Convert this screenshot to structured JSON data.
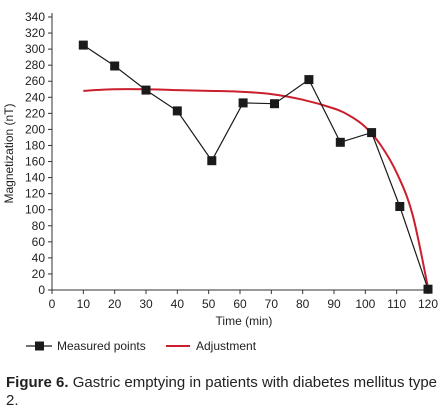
{
  "chart_data": {
    "type": "line",
    "xlabel": "Time (min)",
    "ylabel": "Magnetization (nT)",
    "xlim": [
      0,
      120
    ],
    "ylim": [
      0,
      340
    ],
    "xticks": [
      0,
      10,
      20,
      30,
      40,
      50,
      60,
      70,
      80,
      90,
      100,
      110,
      120
    ],
    "yticks": [
      0,
      20,
      40,
      60,
      80,
      100,
      120,
      140,
      160,
      180,
      200,
      220,
      240,
      260,
      280,
      300,
      320,
      340
    ],
    "grid": false,
    "legend_position": "bottom",
    "series": [
      {
        "name": "Measured points",
        "style": "line-with-square-markers",
        "color": "#1a1a1a",
        "x": [
          10,
          20,
          30,
          40,
          51,
          61,
          71,
          82,
          92,
          102,
          111,
          120
        ],
        "y": [
          305,
          279,
          249,
          223,
          161,
          233,
          232,
          262,
          184,
          196,
          104,
          1
        ]
      },
      {
        "name": "Adjustment",
        "style": "smooth-line",
        "color": "#cc1f2e",
        "x": [
          10,
          20,
          30,
          40,
          50,
          60,
          70,
          80,
          90,
          95,
          100,
          105,
          110,
          115,
          120
        ],
        "y": [
          248,
          250,
          250,
          249,
          248,
          247,
          244,
          237,
          226,
          217,
          203,
          180,
          146,
          95,
          3
        ]
      }
    ]
  },
  "caption": {
    "label": "Figure 6.",
    "text": "Gastric emptying in patients with diabetes mellitus type 2."
  }
}
